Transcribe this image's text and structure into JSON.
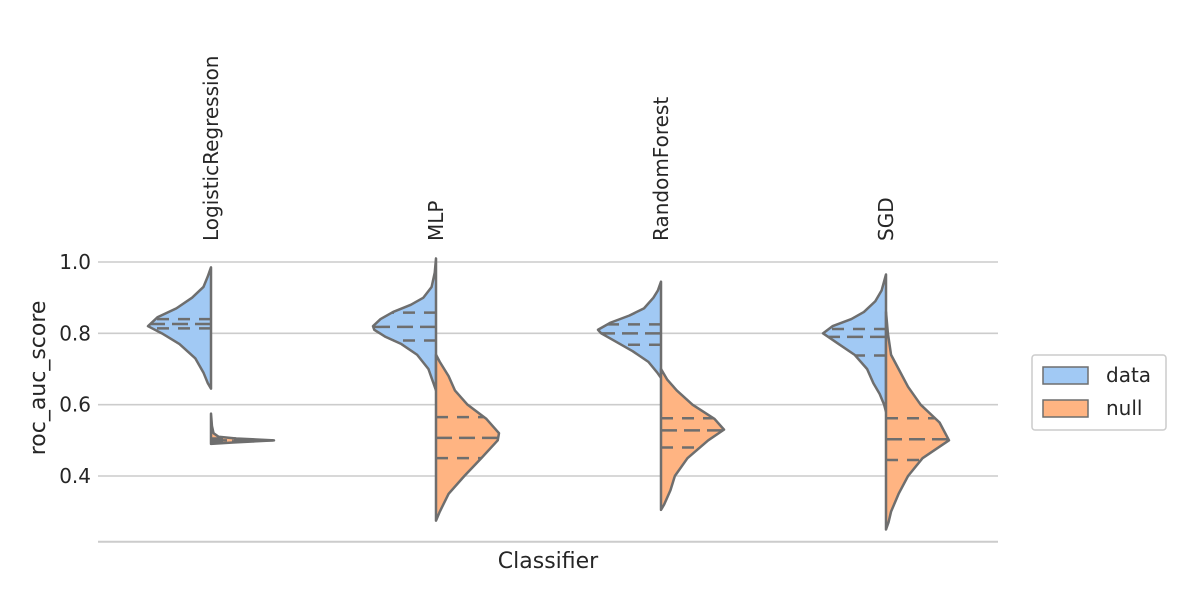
{
  "chart_data": {
    "type": "violin",
    "split": true,
    "inner": "quartile",
    "xlabel": "Classifier",
    "ylabel": "roc_auc_score",
    "categories": [
      "LogisticRegression",
      "MLP",
      "RandomForest",
      "SGD"
    ],
    "category_labels_position": "top",
    "ylim": [
      0.22,
      1.06
    ],
    "yticks": [
      0.4,
      0.6,
      0.8,
      1.0
    ],
    "ytick_labels": [
      "0.4",
      "0.6",
      "0.8",
      "1.0"
    ],
    "grid": true,
    "legend": {
      "position": "right",
      "entries": [
        "data",
        "null"
      ]
    },
    "series": [
      {
        "name": "data",
        "color": "#a1c9f4",
        "side": "left",
        "violins": [
          {
            "category": "LogisticRegression",
            "quartiles": [
              0.814,
              0.826,
              0.84
            ],
            "profile": [
              [
                0.645,
                0
              ],
              [
                0.66,
                0.05
              ],
              [
                0.69,
                0.12
              ],
              [
                0.73,
                0.25
              ],
              [
                0.77,
                0.5
              ],
              [
                0.8,
                0.78
              ],
              [
                0.82,
                1.0
              ],
              [
                0.845,
                0.85
              ],
              [
                0.87,
                0.55
              ],
              [
                0.9,
                0.3
              ],
              [
                0.93,
                0.12
              ],
              [
                0.96,
                0.05
              ],
              [
                0.985,
                0
              ]
            ]
          },
          {
            "category": "MLP",
            "quartiles": [
              0.78,
              0.818,
              0.858
            ],
            "profile": [
              [
                0.64,
                0
              ],
              [
                0.66,
                0.04
              ],
              [
                0.7,
                0.12
              ],
              [
                0.74,
                0.3
              ],
              [
                0.77,
                0.55
              ],
              [
                0.79,
                0.8
              ],
              [
                0.81,
                0.98
              ],
              [
                0.82,
                1.0
              ],
              [
                0.84,
                0.88
              ],
              [
                0.86,
                0.68
              ],
              [
                0.88,
                0.4
              ],
              [
                0.9,
                0.2
              ],
              [
                0.93,
                0.07
              ],
              [
                0.97,
                0.02
              ],
              [
                1.01,
                0
              ]
            ]
          },
          {
            "category": "RandomForest",
            "quartiles": [
              0.768,
              0.8,
              0.825
            ],
            "profile": [
              [
                0.675,
                0
              ],
              [
                0.69,
                0.06
              ],
              [
                0.72,
                0.2
              ],
              [
                0.75,
                0.45
              ],
              [
                0.78,
                0.75
              ],
              [
                0.8,
                0.95
              ],
              [
                0.81,
                1.0
              ],
              [
                0.83,
                0.8
              ],
              [
                0.85,
                0.5
              ],
              [
                0.87,
                0.27
              ],
              [
                0.9,
                0.12
              ],
              [
                0.92,
                0.05
              ],
              [
                0.945,
                0
              ]
            ]
          },
          {
            "category": "SGD",
            "quartiles": [
              0.738,
              0.79,
              0.812
            ],
            "profile": [
              [
                0.58,
                0
              ],
              [
                0.6,
                0.03
              ],
              [
                0.63,
                0.1
              ],
              [
                0.66,
                0.2
              ],
              [
                0.7,
                0.3
              ],
              [
                0.74,
                0.5
              ],
              [
                0.77,
                0.75
              ],
              [
                0.8,
                1.0
              ],
              [
                0.82,
                0.85
              ],
              [
                0.84,
                0.55
              ],
              [
                0.86,
                0.35
              ],
              [
                0.89,
                0.17
              ],
              [
                0.92,
                0.07
              ],
              [
                0.965,
                0
              ]
            ]
          }
        ]
      },
      {
        "name": "null",
        "color": "#ffb482",
        "side": "right",
        "violins": [
          {
            "category": "LogisticRegression",
            "quartiles": [
              0.497,
              0.5,
              0.505
            ],
            "profile": [
              [
                0.49,
                0
              ],
              [
                0.494,
                0.35
              ],
              [
                0.5,
                1.0
              ],
              [
                0.505,
                0.4
              ],
              [
                0.51,
                0.12
              ],
              [
                0.52,
                0.04
              ],
              [
                0.54,
                0.015
              ],
              [
                0.575,
                0
              ]
            ]
          },
          {
            "category": "MLP",
            "quartiles": [
              0.45,
              0.507,
              0.565
            ],
            "profile": [
              [
                0.275,
                0
              ],
              [
                0.3,
                0.06
              ],
              [
                0.35,
                0.2
              ],
              [
                0.4,
                0.45
              ],
              [
                0.45,
                0.72
              ],
              [
                0.5,
                0.98
              ],
              [
                0.52,
                1.0
              ],
              [
                0.56,
                0.8
              ],
              [
                0.6,
                0.5
              ],
              [
                0.64,
                0.3
              ],
              [
                0.68,
                0.2
              ],
              [
                0.72,
                0.06
              ],
              [
                0.74,
                0
              ]
            ]
          },
          {
            "category": "RandomForest",
            "quartiles": [
              0.48,
              0.528,
              0.562
            ],
            "profile": [
              [
                0.305,
                0
              ],
              [
                0.32,
                0.05
              ],
              [
                0.36,
                0.15
              ],
              [
                0.4,
                0.22
              ],
              [
                0.45,
                0.42
              ],
              [
                0.5,
                0.75
              ],
              [
                0.53,
                1.0
              ],
              [
                0.56,
                0.85
              ],
              [
                0.6,
                0.5
              ],
              [
                0.64,
                0.25
              ],
              [
                0.67,
                0.1
              ],
              [
                0.7,
                0
              ]
            ]
          },
          {
            "category": "SGD",
            "quartiles": [
              0.445,
              0.503,
              0.562
            ],
            "profile": [
              [
                0.25,
                0
              ],
              [
                0.27,
                0.04
              ],
              [
                0.3,
                0.08
              ],
              [
                0.35,
                0.2
              ],
              [
                0.4,
                0.35
              ],
              [
                0.45,
                0.58
              ],
              [
                0.5,
                1.0
              ],
              [
                0.55,
                0.85
              ],
              [
                0.6,
                0.55
              ],
              [
                0.65,
                0.35
              ],
              [
                0.7,
                0.2
              ],
              [
                0.74,
                0.08
              ],
              [
                0.8,
                0.03
              ],
              [
                0.86,
                0
              ]
            ]
          }
        ]
      }
    ]
  }
}
